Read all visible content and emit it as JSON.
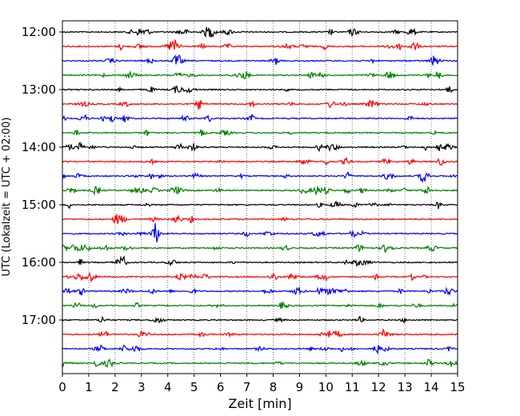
{
  "chart_data": {
    "type": "line",
    "title": "",
    "xlabel": "Zeit  [min]",
    "ylabel": "UTC (Lokalzeit = UTC + 02:00)",
    "xlim": [
      0,
      15
    ],
    "x_ticks": [
      "0",
      "1",
      "2",
      "3",
      "4",
      "5",
      "6",
      "7",
      "8",
      "9",
      "10",
      "11",
      "12",
      "13",
      "14",
      "15"
    ],
    "y_tick_labels": [
      "12:00",
      "13:00",
      "14:00",
      "15:00",
      "16:00",
      "17:00"
    ],
    "grid": "vertical dotted",
    "legend": "none",
    "trace_interval_min": 15,
    "trace_colors": [
      "#000000",
      "#ff0000",
      "#0000ff",
      "#008000"
    ],
    "traces": [
      "12:00",
      "12:15",
      "12:30",
      "12:45",
      "13:00",
      "13:15",
      "13:30",
      "13:45",
      "14:00",
      "14:15",
      "14:30",
      "14:45",
      "15:00",
      "15:15",
      "15:30",
      "15:45",
      "16:00",
      "16:15",
      "16:30",
      "16:45",
      "17:00",
      "17:15",
      "17:30",
      "17:45"
    ]
  }
}
